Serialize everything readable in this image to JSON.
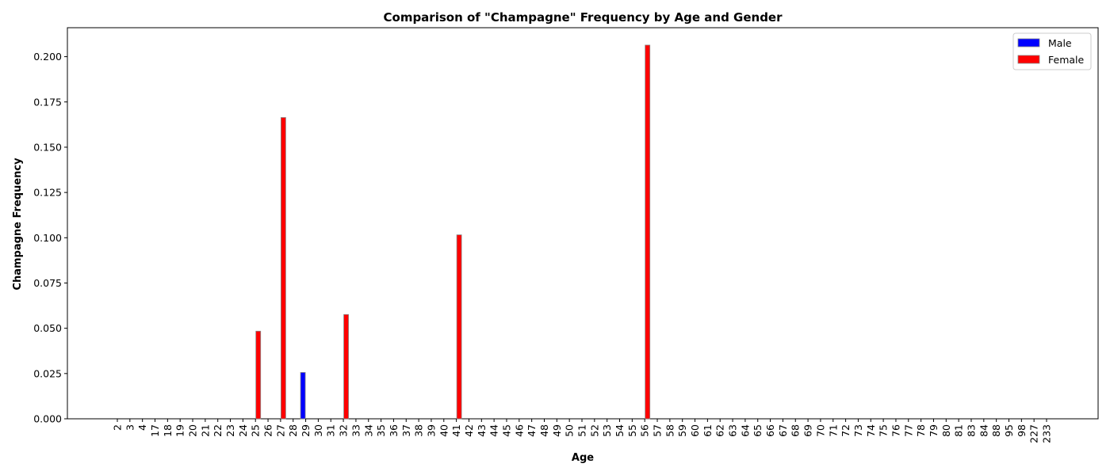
{
  "chart_data": {
    "type": "bar",
    "title": "Comparison of \"Champagne\" Frequency by Age and Gender",
    "xlabel": "Age",
    "ylabel": "Champagne Frequency",
    "ylim": [
      0,
      0.216
    ],
    "yticks": [
      "0.000",
      "0.025",
      "0.050",
      "0.075",
      "0.100",
      "0.125",
      "0.150",
      "0.175",
      "0.200"
    ],
    "grid": false,
    "legend_position": "top-right",
    "categories": [
      "2",
      "3",
      "4",
      "17",
      "18",
      "19",
      "20",
      "21",
      "22",
      "23",
      "24",
      "25",
      "26",
      "27",
      "28",
      "29",
      "30",
      "31",
      "32",
      "33",
      "34",
      "35",
      "36",
      "37",
      "38",
      "39",
      "40",
      "41",
      "42",
      "43",
      "44",
      "45",
      "46",
      "47",
      "48",
      "49",
      "50",
      "51",
      "52",
      "53",
      "54",
      "55",
      "56",
      "57",
      "58",
      "59",
      "60",
      "61",
      "62",
      "63",
      "64",
      "65",
      "66",
      "67",
      "68",
      "69",
      "70",
      "71",
      "72",
      "73",
      "74",
      "75",
      "76",
      "77",
      "78",
      "79",
      "80",
      "81",
      "83",
      "84",
      "88",
      "95",
      "98",
      "227",
      "233"
    ],
    "series": [
      {
        "name": "Male",
        "color": "#0000ff",
        "values": [
          0,
          0,
          0,
          0,
          0,
          0,
          0,
          0,
          0,
          0,
          0,
          0,
          0,
          0,
          0,
          0.0256,
          0,
          0,
          0,
          0,
          0,
          0,
          0,
          0,
          0,
          0,
          0,
          0,
          0,
          0,
          0,
          0,
          0,
          0,
          0,
          0,
          0,
          0,
          0,
          0,
          0,
          0,
          0,
          0,
          0,
          0,
          0,
          0,
          0,
          0,
          0,
          0,
          0,
          0,
          0,
          0,
          0,
          0,
          0,
          0,
          0,
          0,
          0,
          0,
          0,
          0,
          0,
          0,
          0,
          0,
          0,
          0,
          0,
          0,
          0
        ]
      },
      {
        "name": "Female",
        "color": "#ff0000",
        "values": [
          0,
          0,
          0,
          0,
          0,
          0,
          0,
          0,
          0,
          0,
          0,
          0.0484,
          0,
          0.1664,
          0,
          0,
          0,
          0,
          0.0576,
          0,
          0,
          0,
          0,
          0,
          0,
          0,
          0,
          0.1016,
          0,
          0,
          0,
          0,
          0,
          0,
          0,
          0,
          0,
          0,
          0,
          0,
          0,
          0,
          0.2064,
          0,
          0,
          0,
          0,
          0,
          0,
          0,
          0,
          0,
          0,
          0,
          0,
          0,
          0,
          0,
          0,
          0,
          0,
          0,
          0,
          0,
          0,
          0,
          0,
          0,
          0,
          0,
          0,
          0,
          0,
          0,
          0
        ]
      }
    ]
  }
}
